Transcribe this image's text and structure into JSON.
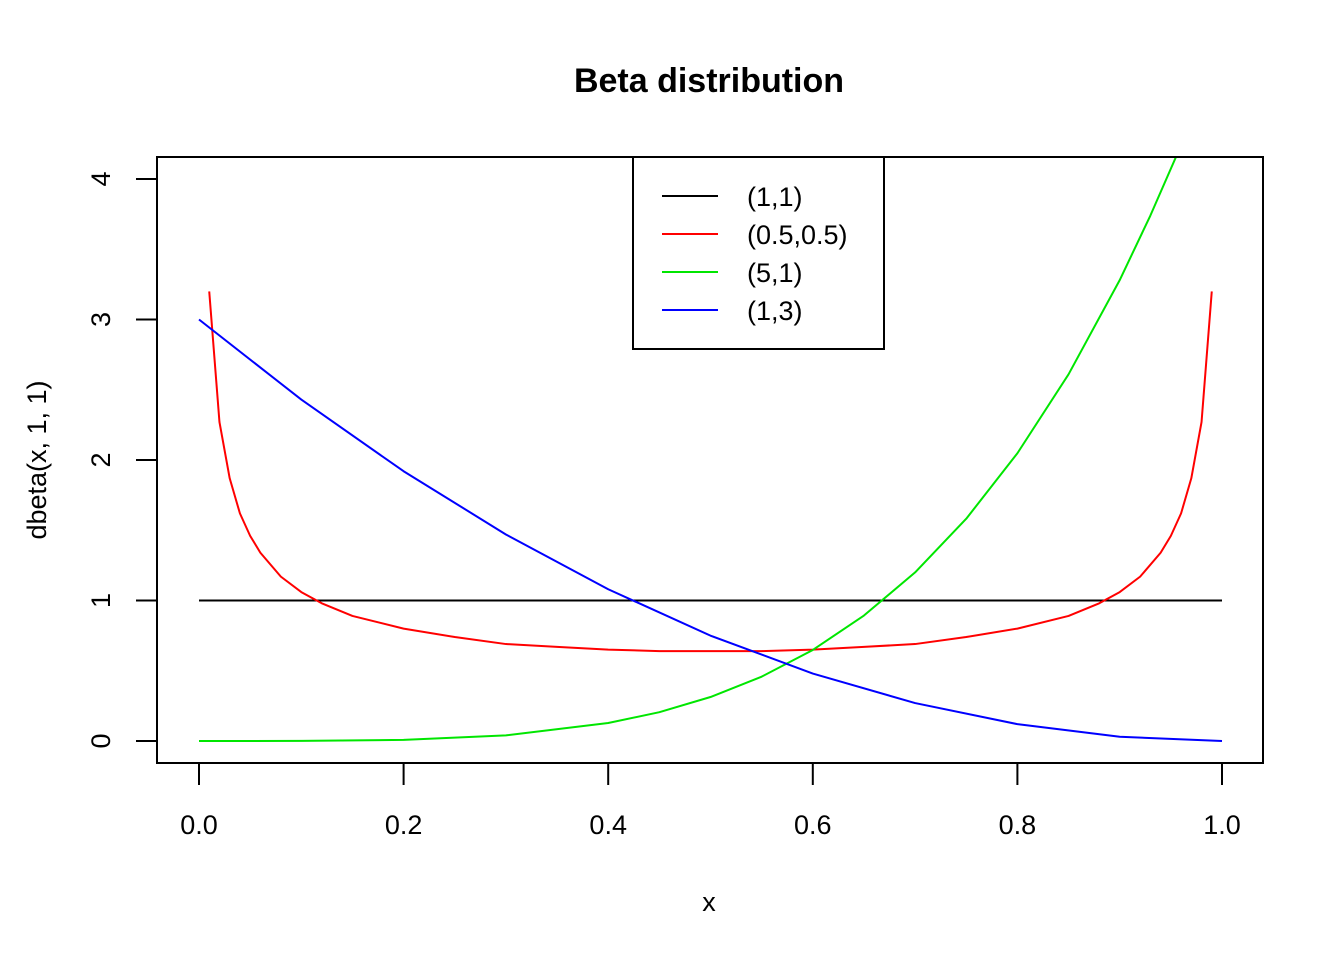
{
  "chart_data": {
    "type": "line",
    "title": "Beta distribution",
    "xlabel": "x",
    "ylabel": "dbeta(x, 1, 1)",
    "xlim": [
      0,
      1
    ],
    "ylim": [
      0,
      4
    ],
    "xticks": [
      "0.0",
      "0.2",
      "0.4",
      "0.6",
      "0.8",
      "1.0"
    ],
    "yticks": [
      "0",
      "1",
      "2",
      "3",
      "4"
    ],
    "grid": false,
    "legend_position": "top-center",
    "series": [
      {
        "name": "(1,1)",
        "color": "#000000",
        "x": [
          0,
          0.1,
          0.2,
          0.3,
          0.4,
          0.5,
          0.6,
          0.7,
          0.8,
          0.9,
          1.0
        ],
        "y": [
          1,
          1,
          1,
          1,
          1,
          1,
          1,
          1,
          1,
          1,
          1
        ]
      },
      {
        "name": "(0.5,0.5)",
        "color": "#ff0000",
        "x": [
          0.01,
          0.02,
          0.03,
          0.04,
          0.05,
          0.06,
          0.08,
          0.1,
          0.12,
          0.15,
          0.2,
          0.25,
          0.3,
          0.35,
          0.4,
          0.45,
          0.5,
          0.55,
          0.6,
          0.65,
          0.7,
          0.75,
          0.8,
          0.85,
          0.88,
          0.9,
          0.92,
          0.94,
          0.95,
          0.96,
          0.97,
          0.98,
          0.99
        ],
        "y": [
          3.2,
          2.27,
          1.87,
          1.62,
          1.46,
          1.34,
          1.17,
          1.06,
          0.98,
          0.89,
          0.8,
          0.74,
          0.69,
          0.67,
          0.65,
          0.64,
          0.64,
          0.64,
          0.65,
          0.67,
          0.69,
          0.74,
          0.8,
          0.89,
          0.98,
          1.06,
          1.17,
          1.34,
          1.46,
          1.62,
          1.87,
          2.27,
          3.2
        ]
      },
      {
        "name": "(5,1)",
        "color": "#00e600",
        "x": [
          0,
          0.1,
          0.2,
          0.3,
          0.4,
          0.45,
          0.5,
          0.55,
          0.6,
          0.65,
          0.7,
          0.75,
          0.8,
          0.85,
          0.9,
          0.93,
          0.957
        ],
        "y": [
          0,
          0.0005,
          0.008,
          0.04,
          0.128,
          0.205,
          0.313,
          0.458,
          0.648,
          0.893,
          1.2,
          1.582,
          2.048,
          2.61,
          3.28,
          3.74,
          4.19
        ]
      },
      {
        "name": "(1,3)",
        "color": "#0000ff",
        "x": [
          0,
          0.1,
          0.2,
          0.3,
          0.4,
          0.5,
          0.6,
          0.7,
          0.8,
          0.9,
          1.0
        ],
        "y": [
          3,
          2.43,
          1.92,
          1.47,
          1.08,
          0.75,
          0.48,
          0.27,
          0.12,
          0.03,
          0
        ]
      }
    ]
  }
}
